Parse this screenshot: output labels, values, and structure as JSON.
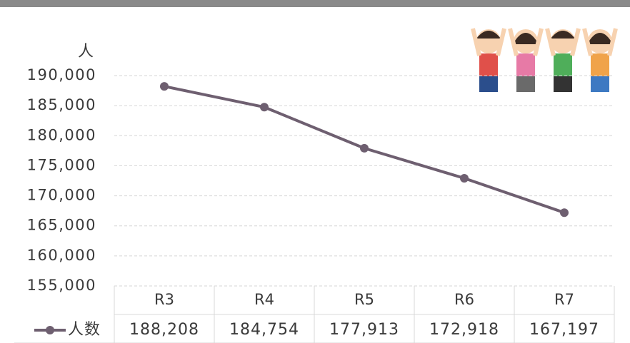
{
  "chart_data": {
    "type": "line",
    "y_label": "人",
    "categories": [
      "R3",
      "R4",
      "R5",
      "R6",
      "R7"
    ],
    "series": [
      {
        "name": "人数",
        "color": "#6e5f70",
        "values": [
          188208,
          184754,
          177913,
          172918,
          167197
        ],
        "value_labels": [
          "188,208",
          "184,754",
          "177,913",
          "172,918",
          "167,197"
        ]
      }
    ],
    "ylim": [
      155000,
      190000
    ],
    "yticks": [
      {
        "value": 155000,
        "label": "155,000"
      },
      {
        "value": 160000,
        "label": "160,000"
      },
      {
        "value": 165000,
        "label": "165,000"
      },
      {
        "value": 170000,
        "label": "170,000"
      },
      {
        "value": 175000,
        "label": "175,000"
      },
      {
        "value": 180000,
        "label": "180,000"
      },
      {
        "value": 185000,
        "label": "185,000"
      },
      {
        "value": 190000,
        "label": "190,000"
      }
    ],
    "grid": true
  }
}
